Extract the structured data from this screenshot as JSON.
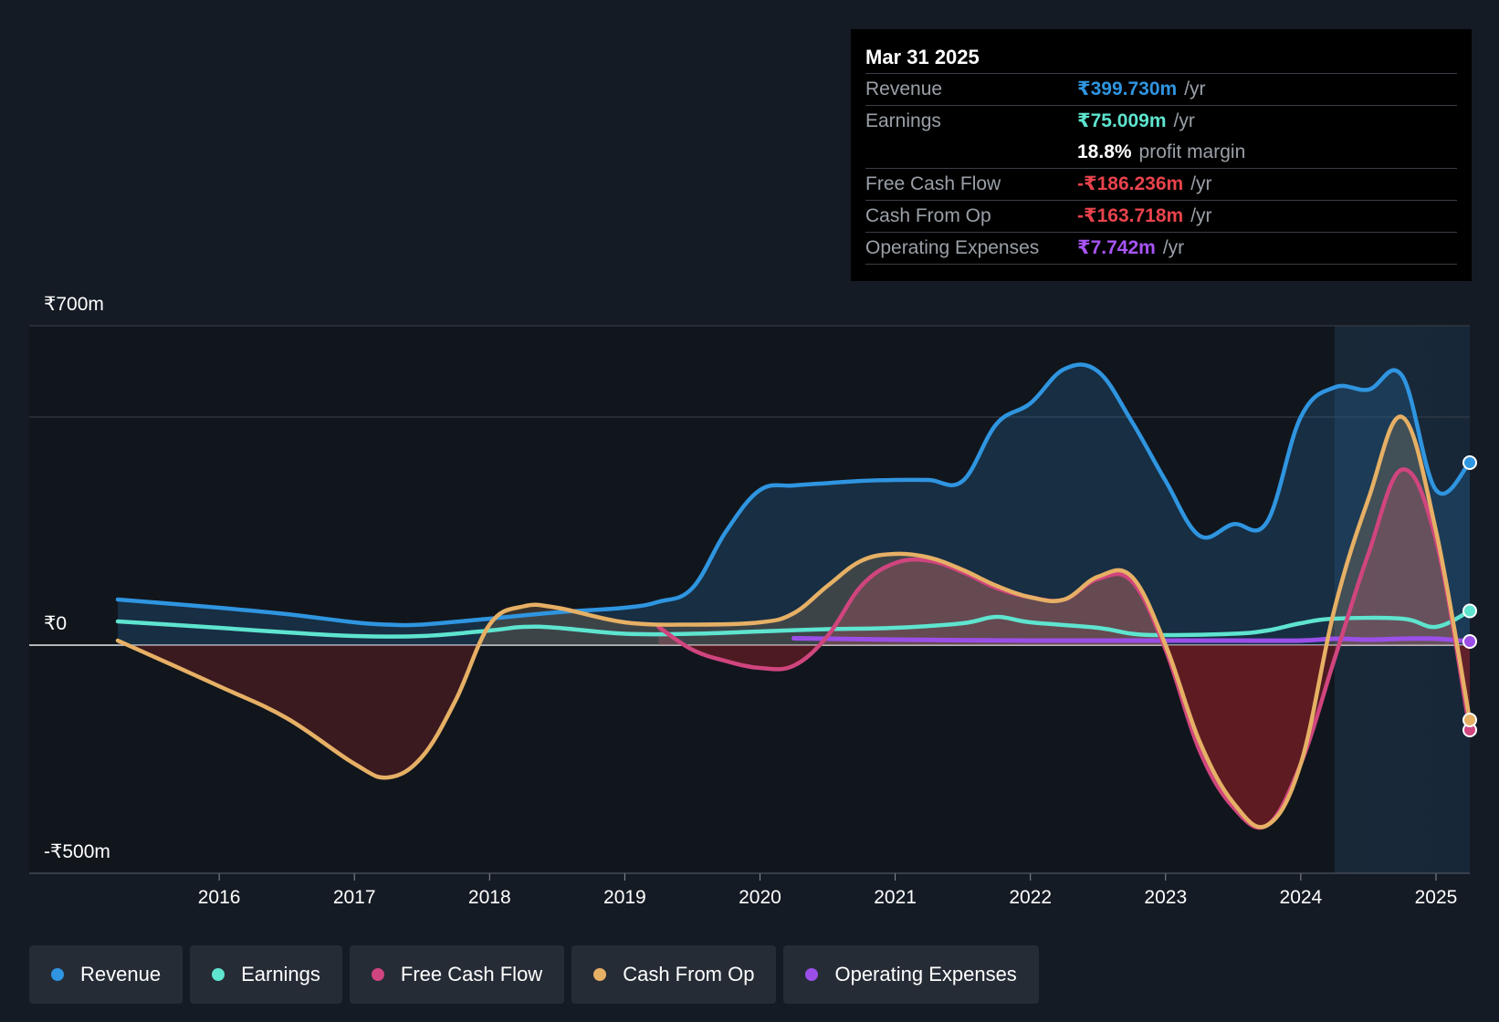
{
  "chart_data": {
    "type": "area",
    "title": "",
    "currency": "₹",
    "y_axis": {
      "min": -500,
      "max": 700,
      "unit": "m",
      "labels": [
        {
          "value": 700,
          "text": "₹700m"
        },
        {
          "value": 0,
          "text": "₹0"
        },
        {
          "value": -500,
          "text": "-₹500m"
        }
      ],
      "gridlines": [
        700,
        500,
        0,
        -500
      ]
    },
    "x_axis": {
      "min": 2015.0,
      "max": 2025.25,
      "ticks": [
        2016,
        2017,
        2018,
        2019,
        2020,
        2021,
        2022,
        2023,
        2024,
        2025
      ],
      "tick_labels": [
        "2016",
        "2017",
        "2018",
        "2019",
        "2020",
        "2021",
        "2022",
        "2023",
        "2024",
        "2025"
      ]
    },
    "highlight_from": 2024.25,
    "series": [
      {
        "name": "Revenue",
        "color": "#2f95e0",
        "fill": true,
        "points": [
          [
            2015.25,
            100
          ],
          [
            2016.0,
            82
          ],
          [
            2016.5,
            68
          ],
          [
            2017.0,
            50
          ],
          [
            2017.25,
            45
          ],
          [
            2017.5,
            45
          ],
          [
            2018.0,
            58
          ],
          [
            2018.5,
            72
          ],
          [
            2019.0,
            82
          ],
          [
            2019.25,
            95
          ],
          [
            2019.5,
            125
          ],
          [
            2019.75,
            250
          ],
          [
            2020.0,
            340
          ],
          [
            2020.25,
            350
          ],
          [
            2020.5,
            355
          ],
          [
            2020.75,
            360
          ],
          [
            2021.0,
            362
          ],
          [
            2021.25,
            362
          ],
          [
            2021.5,
            360
          ],
          [
            2021.75,
            485
          ],
          [
            2022.0,
            530
          ],
          [
            2022.25,
            605
          ],
          [
            2022.5,
            600
          ],
          [
            2022.75,
            490
          ],
          [
            2023.0,
            360
          ],
          [
            2023.25,
            240
          ],
          [
            2023.5,
            265
          ],
          [
            2023.75,
            270
          ],
          [
            2024.0,
            500
          ],
          [
            2024.25,
            565
          ],
          [
            2024.5,
            560
          ],
          [
            2024.75,
            590
          ],
          [
            2025.0,
            340
          ],
          [
            2025.25,
            400
          ]
        ]
      },
      {
        "name": "Earnings",
        "color": "#5ee4cf",
        "fill": false,
        "points": [
          [
            2015.25,
            52
          ],
          [
            2016.0,
            38
          ],
          [
            2016.5,
            28
          ],
          [
            2017.0,
            20
          ],
          [
            2017.5,
            20
          ],
          [
            2018.0,
            32
          ],
          [
            2018.25,
            40
          ],
          [
            2018.5,
            38
          ],
          [
            2019.0,
            25
          ],
          [
            2019.5,
            25
          ],
          [
            2020.0,
            30
          ],
          [
            2020.5,
            35
          ],
          [
            2021.0,
            38
          ],
          [
            2021.5,
            48
          ],
          [
            2021.75,
            62
          ],
          [
            2022.0,
            50
          ],
          [
            2022.5,
            38
          ],
          [
            2022.75,
            25
          ],
          [
            2023.0,
            22
          ],
          [
            2023.5,
            25
          ],
          [
            2023.75,
            32
          ],
          [
            2024.0,
            48
          ],
          [
            2024.25,
            58
          ],
          [
            2024.75,
            58
          ],
          [
            2025.0,
            40
          ],
          [
            2025.25,
            75
          ]
        ]
      },
      {
        "name": "Free Cash Flow",
        "color": "#d0457e",
        "fill": true,
        "points": [
          [
            2019.25,
            40
          ],
          [
            2019.5,
            -10
          ],
          [
            2019.75,
            -35
          ],
          [
            2020.0,
            -50
          ],
          [
            2020.25,
            -45
          ],
          [
            2020.5,
            20
          ],
          [
            2020.75,
            130
          ],
          [
            2021.0,
            180
          ],
          [
            2021.25,
            185
          ],
          [
            2021.5,
            160
          ],
          [
            2021.75,
            125
          ],
          [
            2022.0,
            105
          ],
          [
            2022.25,
            100
          ],
          [
            2022.5,
            145
          ],
          [
            2022.75,
            140
          ],
          [
            2023.0,
            -10
          ],
          [
            2023.25,
            -230
          ],
          [
            2023.5,
            -355
          ],
          [
            2023.75,
            -395
          ],
          [
            2024.0,
            -260
          ],
          [
            2024.25,
            -30
          ],
          [
            2024.5,
            200
          ],
          [
            2024.75,
            385
          ],
          [
            2025.0,
            230
          ],
          [
            2025.25,
            -186
          ]
        ]
      },
      {
        "name": "Cash From Op",
        "color": "#e6b065",
        "fill": true,
        "points": [
          [
            2015.25,
            10
          ],
          [
            2016.0,
            -90
          ],
          [
            2016.5,
            -160
          ],
          [
            2017.0,
            -260
          ],
          [
            2017.25,
            -290
          ],
          [
            2017.5,
            -245
          ],
          [
            2017.75,
            -120
          ],
          [
            2018.0,
            45
          ],
          [
            2018.25,
            85
          ],
          [
            2018.5,
            82
          ],
          [
            2019.0,
            50
          ],
          [
            2019.5,
            45
          ],
          [
            2020.0,
            50
          ],
          [
            2020.25,
            70
          ],
          [
            2020.5,
            130
          ],
          [
            2020.75,
            185
          ],
          [
            2021.0,
            200
          ],
          [
            2021.25,
            192
          ],
          [
            2021.5,
            165
          ],
          [
            2021.75,
            130
          ],
          [
            2022.0,
            105
          ],
          [
            2022.25,
            100
          ],
          [
            2022.5,
            150
          ],
          [
            2022.75,
            150
          ],
          [
            2023.0,
            0
          ],
          [
            2023.25,
            -210
          ],
          [
            2023.5,
            -345
          ],
          [
            2023.75,
            -395
          ],
          [
            2024.0,
            -260
          ],
          [
            2024.25,
            80
          ],
          [
            2024.5,
            320
          ],
          [
            2024.75,
            500
          ],
          [
            2025.0,
            250
          ],
          [
            2025.25,
            -164
          ]
        ]
      },
      {
        "name": "Operating Expenses",
        "color": "#9b4fe8",
        "fill": false,
        "points": [
          [
            2020.25,
            15
          ],
          [
            2021.0,
            12
          ],
          [
            2022.0,
            10
          ],
          [
            2022.75,
            10
          ],
          [
            2023.0,
            10
          ],
          [
            2023.5,
            10
          ],
          [
            2024.0,
            10
          ],
          [
            2024.25,
            14
          ],
          [
            2024.5,
            12
          ],
          [
            2024.75,
            14
          ],
          [
            2025.0,
            14
          ],
          [
            2025.25,
            8
          ]
        ]
      }
    ]
  },
  "tooltip": {
    "date": "Mar 31 2025",
    "rows": [
      {
        "label": "Revenue",
        "value": "₹399.730m",
        "unit": "/yr",
        "color": "#2f95e0"
      },
      {
        "label": "Earnings",
        "value": "₹75.009m",
        "unit": "/yr",
        "color": "#5ee4cf"
      },
      {
        "label": "",
        "value": "18.8%",
        "unit": "profit margin",
        "color": "#ffffff"
      },
      {
        "label": "Free Cash Flow",
        "value": "-₹186.236m",
        "unit": "/yr",
        "color": "#e8434c"
      },
      {
        "label": "Cash From Op",
        "value": "-₹163.718m",
        "unit": "/yr",
        "color": "#e8434c"
      },
      {
        "label": "Operating Expenses",
        "value": "₹7.742m",
        "unit": "/yr",
        "color": "#a855f7"
      }
    ]
  },
  "legend": [
    {
      "label": "Revenue",
      "color": "#2f95e0"
    },
    {
      "label": "Earnings",
      "color": "#5ee4cf"
    },
    {
      "label": "Free Cash Flow",
      "color": "#d0457e"
    },
    {
      "label": "Cash From Op",
      "color": "#e6b065"
    },
    {
      "label": "Operating Expenses",
      "color": "#9b4fe8"
    }
  ]
}
